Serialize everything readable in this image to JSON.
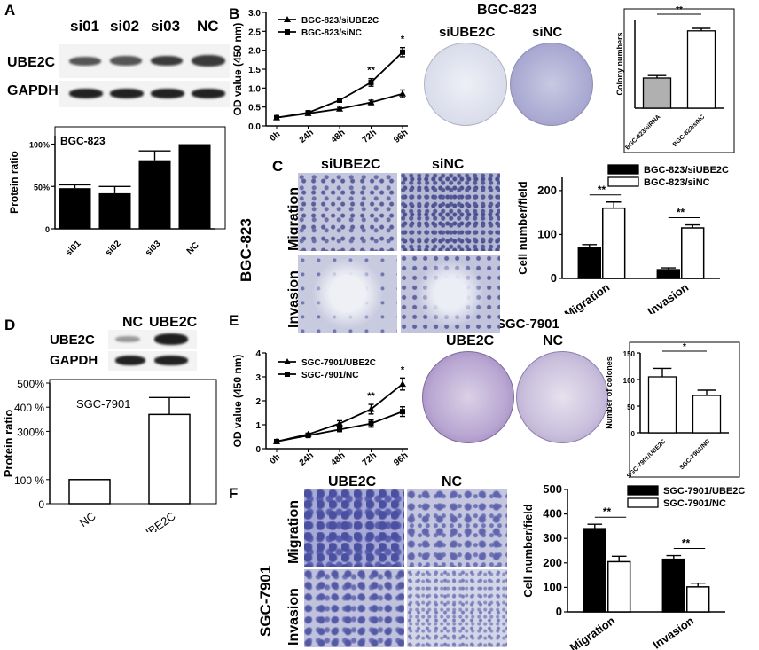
{
  "panels": {
    "A": "A",
    "B": "B",
    "C": "C",
    "D": "D",
    "E": "E",
    "F": "F"
  },
  "blotA": {
    "lanes": [
      "si01",
      "si02",
      "si03",
      "NC"
    ],
    "rows": [
      "UBE2C",
      "GAPDH"
    ]
  },
  "blotD": {
    "lanes": [
      "NC",
      "UBE2C"
    ],
    "rows": [
      "UBE2C",
      "GAPDH"
    ]
  },
  "photos": {
    "bgc_title": "BGC-823",
    "bgc_dish_labels": [
      "siUBE2C",
      "siNC"
    ],
    "sgc_title": "SGC-7901",
    "sgc_dish_labels": [
      "UBE2C",
      "NC"
    ],
    "C_cols": [
      "siUBE2C",
      "siNC"
    ],
    "C_rows": [
      "Migration",
      "Invasion"
    ],
    "C_side": "BGC-823",
    "F_cols": [
      "UBE2C",
      "NC"
    ],
    "F_rows": [
      "Migration",
      "Invasion"
    ],
    "F_side": "SGC-7901"
  },
  "chart_data": [
    {
      "id": "A-bar",
      "type": "bar",
      "inset_title": "BGC-823",
      "categories": [
        "si01",
        "si02",
        "si03",
        "NC"
      ],
      "values": [
        48,
        42,
        81,
        100
      ],
      "errors": [
        4,
        8,
        11,
        0
      ],
      "ylabel": "Protein ratio",
      "yticks": [
        "0",
        "50%",
        "100%"
      ],
      "ylim": [
        0,
        110
      ]
    },
    {
      "id": "B-line",
      "type": "line",
      "x": [
        "0h",
        "24h",
        "48h",
        "72h",
        "96h"
      ],
      "series": [
        {
          "name": "BGC-823/siUBE2C",
          "values": [
            0.22,
            0.33,
            0.45,
            0.62,
            0.85
          ],
          "errors": [
            0.02,
            0.03,
            0.04,
            0.06,
            0.1
          ]
        },
        {
          "name": "BGC-823/siNC",
          "values": [
            0.22,
            0.35,
            0.68,
            1.15,
            1.95
          ],
          "errors": [
            0.02,
            0.03,
            0.05,
            0.1,
            0.12
          ]
        }
      ],
      "ylabel": "OD value (450 nm)",
      "yticks": [
        "0.0",
        "0.5",
        "1.0",
        "1.5",
        "2.0",
        "2.5",
        "3.0"
      ],
      "ylim": [
        0,
        3
      ],
      "annotations": [
        "**",
        "*"
      ]
    },
    {
      "id": "B-bar",
      "type": "bar",
      "categories": [
        "BGC-823/siRNA",
        "BGC-823/siNC"
      ],
      "values": [
        85,
        218
      ],
      "errors": [
        7,
        7
      ],
      "ylim": [
        0,
        250
      ],
      "ylabel": "Colony numbers",
      "annotations": [
        "**"
      ]
    },
    {
      "id": "C-bar",
      "type": "bar",
      "categories": [
        "Migration",
        "Invasion"
      ],
      "series": [
        {
          "name": "BGC-823/siUBE2C",
          "values": [
            70,
            20
          ],
          "errors": [
            7,
            4
          ]
        },
        {
          "name": "BGC-823/siNC",
          "values": [
            160,
            115
          ],
          "errors": [
            14,
            7
          ]
        }
      ],
      "ylabel": "Cell number/field",
      "yticks": [
        "0",
        "100",
        "200"
      ],
      "ylim": [
        0,
        230
      ],
      "annotations": [
        "**",
        "**"
      ]
    },
    {
      "id": "D-bar",
      "type": "bar",
      "inset_title": "SGC-7901",
      "categories": [
        "NC",
        "UBE2C"
      ],
      "values": [
        100,
        370
      ],
      "errors": [
        0,
        70
      ],
      "ylabel": "Protein ratio",
      "yticks": [
        "0",
        "100 %",
        "300%",
        "400 %",
        "500%"
      ],
      "ylim": [
        0,
        500
      ]
    },
    {
      "id": "E-line",
      "type": "line",
      "x": [
        "0h",
        "24h",
        "48h",
        "72h",
        "96h"
      ],
      "series": [
        {
          "name": "SGC-7901/UBE2C",
          "values": [
            0.3,
            0.6,
            1.05,
            1.65,
            2.7
          ],
          "errors": [
            0.03,
            0.05,
            0.12,
            0.2,
            0.25
          ]
        },
        {
          "name": "SGC-7901/NC",
          "values": [
            0.3,
            0.55,
            0.8,
            1.05,
            1.55
          ],
          "errors": [
            0.03,
            0.05,
            0.08,
            0.15,
            0.2
          ]
        }
      ],
      "ylabel": "OD value (450 nm)",
      "yticks": [
        "0",
        "1",
        "2",
        "3",
        "4"
      ],
      "ylim": [
        0,
        4
      ],
      "annotations": [
        "**",
        "*"
      ]
    },
    {
      "id": "E-bar",
      "type": "bar",
      "categories": [
        "SGC-7901/UBE2C",
        "SGC-7901/NC"
      ],
      "values": [
        105,
        70
      ],
      "errors": [
        16,
        10
      ],
      "ylim": [
        0,
        150
      ],
      "ylabel": "Number of colones",
      "yticks": [
        "0",
        "50",
        "100",
        "150"
      ],
      "annotations": [
        "*"
      ]
    },
    {
      "id": "F-bar",
      "type": "bar",
      "categories": [
        "Migration",
        "Invasion"
      ],
      "series": [
        {
          "name": "SGC-7901/UBE2C",
          "values": [
            340,
            215
          ],
          "errors": [
            18,
            15
          ]
        },
        {
          "name": "SGC-7901/NC",
          "values": [
            205,
            102
          ],
          "errors": [
            22,
            15
          ]
        }
      ],
      "ylabel": "Cell number/field",
      "yticks": [
        "0",
        "100",
        "200",
        "300",
        "400",
        "500"
      ],
      "ylim": [
        0,
        500
      ],
      "annotations": [
        "**",
        "**"
      ]
    }
  ]
}
